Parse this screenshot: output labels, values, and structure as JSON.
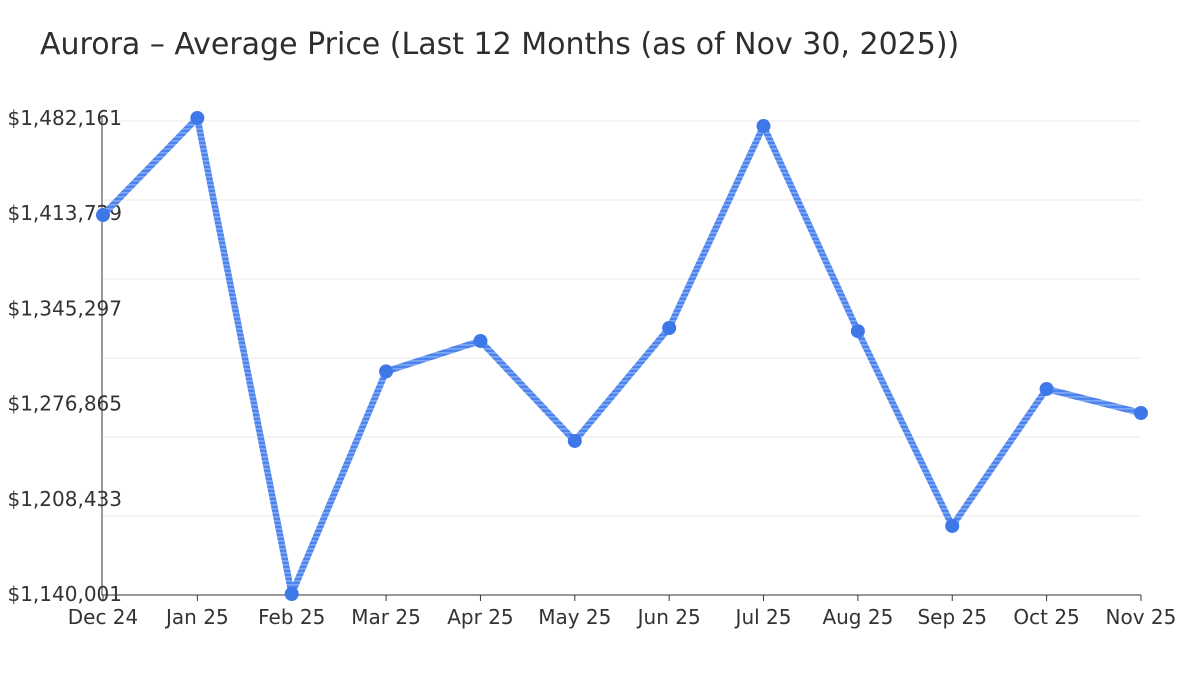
{
  "title": "Aurora – Average Price (Last 12 Months (as of Nov 30, 2025))",
  "chart_data": {
    "type": "line",
    "title": "Aurora – Average Price (Last 12 Months (as of Nov 30, 2025))",
    "series_name": "Average Price",
    "categories": [
      "Dec 24",
      "Jan 25",
      "Feb 25",
      "Mar 25",
      "Apr 25",
      "May 25",
      "Jun 25",
      "Jul 25",
      "Aug 25",
      "Sep 25",
      "Oct 25",
      "Nov 25"
    ],
    "values": [
      1412400,
      1482161,
      1140001,
      1300000,
      1321900,
      1250000,
      1331200,
      1476400,
      1329000,
      1188900,
      1287400,
      1270100
    ],
    "y_tick_labels": [
      "$1,140,001",
      "$1,208,433",
      "$1,276,865",
      "$1,345,297",
      "$1,413,729",
      "$1,482,161"
    ],
    "y_tick_values": [
      1140001,
      1208433,
      1276865,
      1345297,
      1413729,
      1482161
    ],
    "xlabel": "",
    "ylabel": "",
    "ylim": [
      1140001,
      1482161
    ],
    "grid": true,
    "legend": false,
    "marker": "circle"
  },
  "colors": {
    "background": "#ffffff",
    "text": "#333333",
    "title": "#2e2e2e",
    "grid": "#e9e9e9",
    "axis": "#333333",
    "line": "#4d83ec",
    "line_light": "#7ea7f3",
    "point": "#3e78e8"
  }
}
